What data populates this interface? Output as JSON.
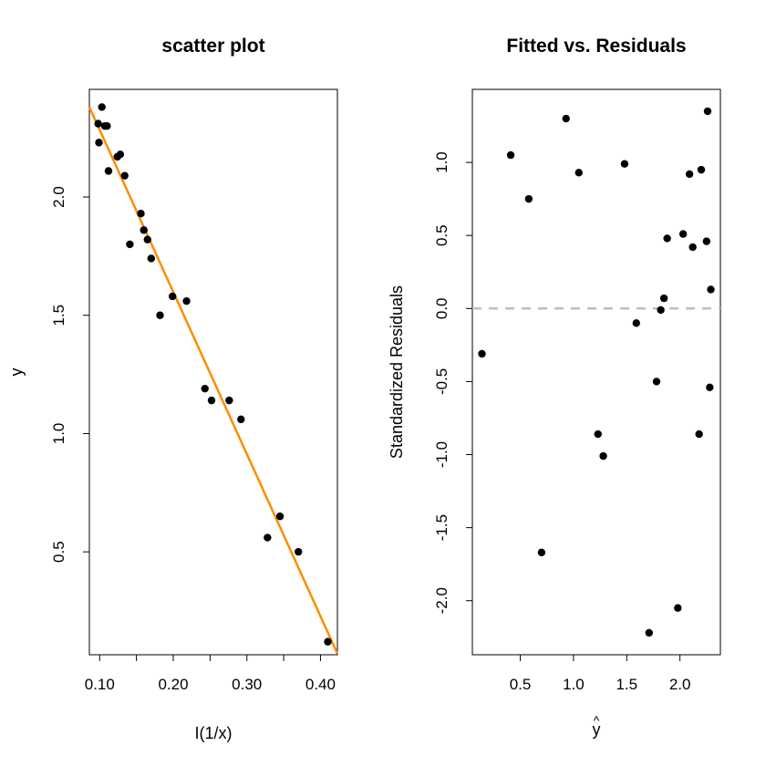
{
  "chart_data": [
    {
      "type": "scatter",
      "title": "scatter plot",
      "xlabel": "I(1/x)",
      "ylabel": "y",
      "xlim": [
        0.086,
        0.423
      ],
      "ylim": [
        0.065,
        2.455
      ],
      "xticks": [
        0.1,
        0.15,
        0.2,
        0.25,
        0.3,
        0.35,
        0.4
      ],
      "xtick_labels": [
        "0.10",
        "",
        "0.20",
        "",
        "0.30",
        "",
        "0.40"
      ],
      "yticks": [
        0.5,
        1.0,
        1.5,
        2.0
      ],
      "ytick_labels": [
        "0.5",
        "1.0",
        "1.5",
        "2.0"
      ],
      "grid": false,
      "point_color": "#000000",
      "line_color": "#FF8C00",
      "fit_line": {
        "x": [
          0.086,
          0.423
        ],
        "y": [
          2.38,
          0.07
        ]
      },
      "points": [
        {
          "x": 0.098,
          "y": 2.31
        },
        {
          "x": 0.099,
          "y": 2.23
        },
        {
          "x": 0.103,
          "y": 2.38
        },
        {
          "x": 0.107,
          "y": 2.3
        },
        {
          "x": 0.11,
          "y": 2.3
        },
        {
          "x": 0.112,
          "y": 2.11
        },
        {
          "x": 0.124,
          "y": 2.17
        },
        {
          "x": 0.128,
          "y": 2.18
        },
        {
          "x": 0.134,
          "y": 2.09
        },
        {
          "x": 0.141,
          "y": 1.8
        },
        {
          "x": 0.156,
          "y": 1.93
        },
        {
          "x": 0.16,
          "y": 1.86
        },
        {
          "x": 0.165,
          "y": 1.82
        },
        {
          "x": 0.17,
          "y": 1.74
        },
        {
          "x": 0.182,
          "y": 1.5
        },
        {
          "x": 0.199,
          "y": 1.58
        },
        {
          "x": 0.218,
          "y": 1.56
        },
        {
          "x": 0.243,
          "y": 1.19
        },
        {
          "x": 0.252,
          "y": 1.14
        },
        {
          "x": 0.276,
          "y": 1.14
        },
        {
          "x": 0.292,
          "y": 1.06
        },
        {
          "x": 0.328,
          "y": 0.56
        },
        {
          "x": 0.345,
          "y": 0.65
        },
        {
          "x": 0.37,
          "y": 0.5
        },
        {
          "x": 0.41,
          "y": 0.12
        }
      ]
    },
    {
      "type": "scatter",
      "title": "Fitted vs. Residuals",
      "xlabel": "y",
      "xlabel_hat": "^",
      "ylabel": "Standardized Residuals",
      "xlim": [
        0.05,
        2.38
      ],
      "ylim": [
        -2.37,
        1.5
      ],
      "xticks": [
        0.5,
        1.0,
        1.5,
        2.0
      ],
      "xtick_labels": [
        "0.5",
        "1.0",
        "1.5",
        "2.0"
      ],
      "yticks": [
        -2.0,
        -1.5,
        -1.0,
        -0.5,
        0.0,
        0.5,
        1.0
      ],
      "ytick_labels": [
        "-2.0",
        "-1.5",
        "-1.0",
        "-0.5",
        "0.0",
        "0.5",
        "1.0"
      ],
      "grid": false,
      "point_color": "#000000",
      "reference_line": {
        "y": 0,
        "color": "#BEBEBE",
        "dashed": true
      },
      "points": [
        {
          "x": 0.14,
          "y": -0.31
        },
        {
          "x": 0.41,
          "y": 1.05
        },
        {
          "x": 0.58,
          "y": 0.75
        },
        {
          "x": 0.7,
          "y": -1.67
        },
        {
          "x": 0.93,
          "y": 1.3
        },
        {
          "x": 1.05,
          "y": 0.93
        },
        {
          "x": 1.23,
          "y": -0.86
        },
        {
          "x": 1.28,
          "y": -1.01
        },
        {
          "x": 1.48,
          "y": 0.99
        },
        {
          "x": 1.59,
          "y": -0.1
        },
        {
          "x": 1.71,
          "y": -2.22
        },
        {
          "x": 1.78,
          "y": -0.5
        },
        {
          "x": 1.82,
          "y": -0.01
        },
        {
          "x": 1.85,
          "y": 0.07
        },
        {
          "x": 1.88,
          "y": 0.48
        },
        {
          "x": 1.98,
          "y": -2.05
        },
        {
          "x": 2.03,
          "y": 0.51
        },
        {
          "x": 2.09,
          "y": 0.92
        },
        {
          "x": 2.12,
          "y": 0.42
        },
        {
          "x": 2.18,
          "y": -0.86
        },
        {
          "x": 2.2,
          "y": 0.95
        },
        {
          "x": 2.25,
          "y": 0.46
        },
        {
          "x": 2.26,
          "y": 1.35
        },
        {
          "x": 2.28,
          "y": -0.54
        },
        {
          "x": 2.29,
          "y": 0.13
        }
      ]
    }
  ]
}
